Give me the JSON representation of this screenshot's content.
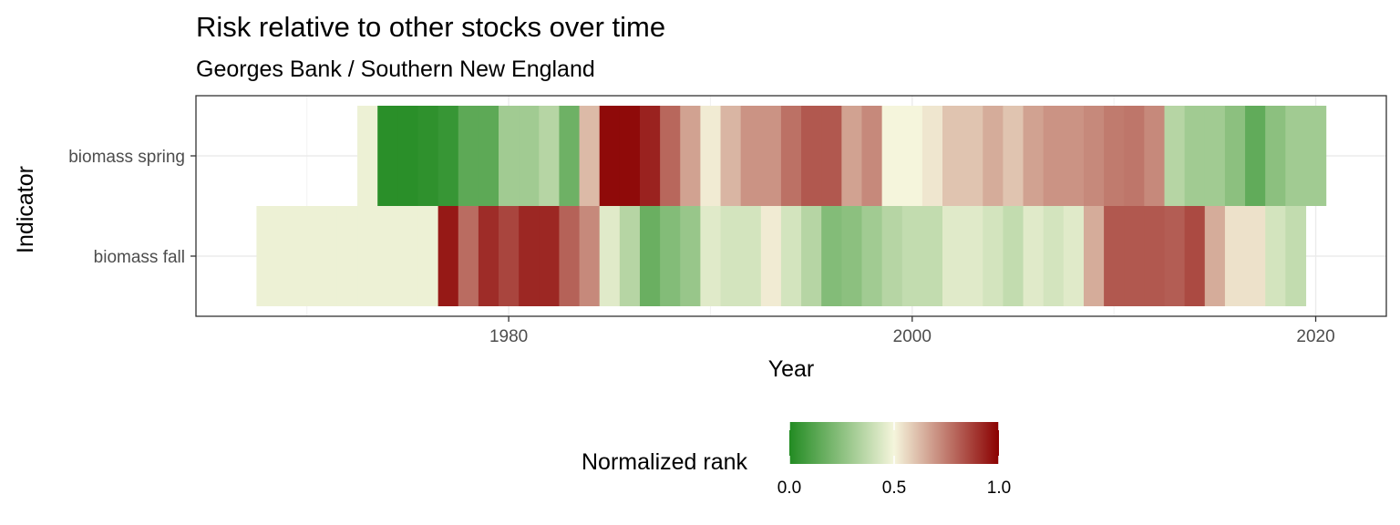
{
  "chart_data": {
    "type": "heatmap",
    "title": "Risk relative to other stocks over time",
    "subtitle": "Georges Bank / Southern New England",
    "xlabel": "Year",
    "ylabel": "Indicator",
    "xlim": [
      1964.5,
      2023.5
    ],
    "x_ticks": [
      1980,
      2000,
      2020
    ],
    "x_tick_labels": [
      "1980",
      "2000",
      "2020"
    ],
    "categories": [
      "biomass spring",
      "biomass fall"
    ],
    "grid": true,
    "legend": {
      "title": "Normalized rank",
      "position": "bottom",
      "range": [
        0,
        1
      ],
      "ticks": [
        0.0,
        0.5,
        1.0
      ],
      "tick_labels": [
        "0.0",
        "0.5",
        "1.0"
      ],
      "low_color": "#228B22",
      "mid_color": "#F5F5DC",
      "high_color": "#8B0000"
    },
    "series": [
      {
        "name": "biomass spring",
        "x": [
          1973,
          1974,
          1975,
          1976,
          1977,
          1978,
          1979,
          1980,
          1981,
          1982,
          1983,
          1984,
          1985,
          1986,
          1987,
          1988,
          1989,
          1990,
          1991,
          1992,
          1993,
          1994,
          1995,
          1996,
          1997,
          1998,
          1999,
          2000,
          2001,
          2002,
          2003,
          2004,
          2005,
          2006,
          2007,
          2008,
          2009,
          2010,
          2011,
          2012,
          2013,
          2014,
          2015,
          2016,
          2017,
          2018,
          2019,
          2020
        ],
        "values": [
          0.48,
          0.02,
          0.02,
          0.03,
          0.05,
          0.14,
          0.14,
          0.3,
          0.3,
          0.35,
          0.18,
          0.62,
          0.98,
          0.98,
          0.93,
          0.79,
          0.67,
          0.52,
          0.63,
          0.7,
          0.7,
          0.77,
          0.82,
          0.82,
          0.67,
          0.72,
          0.5,
          0.5,
          0.53,
          0.6,
          0.6,
          0.65,
          0.6,
          0.67,
          0.7,
          0.7,
          0.72,
          0.75,
          0.76,
          0.72,
          0.35,
          0.3,
          0.3,
          0.25,
          0.15,
          0.25,
          0.3,
          0.3
        ]
      },
      {
        "name": "biomass fall",
        "x": [
          1968,
          1969,
          1970,
          1971,
          1972,
          1973,
          1974,
          1975,
          1976,
          1977,
          1978,
          1979,
          1980,
          1981,
          1982,
          1983,
          1984,
          1985,
          1986,
          1987,
          1988,
          1989,
          1990,
          1991,
          1992,
          1993,
          1994,
          1995,
          1996,
          1997,
          1998,
          1999,
          2000,
          2001,
          2002,
          2003,
          2004,
          2005,
          2006,
          2007,
          2008,
          2009,
          2010,
          2011,
          2012,
          2013,
          2014,
          2015,
          2016,
          2017,
          2018,
          2019
        ],
        "values": [
          0.48,
          0.48,
          0.48,
          0.48,
          0.48,
          0.48,
          0.48,
          0.48,
          0.48,
          0.95,
          0.78,
          0.91,
          0.86,
          0.92,
          0.92,
          0.8,
          0.72,
          0.45,
          0.35,
          0.17,
          0.23,
          0.28,
          0.45,
          0.42,
          0.42,
          0.52,
          0.42,
          0.35,
          0.23,
          0.25,
          0.3,
          0.35,
          0.38,
          0.38,
          0.45,
          0.45,
          0.42,
          0.38,
          0.45,
          0.42,
          0.45,
          0.65,
          0.82,
          0.82,
          0.82,
          0.81,
          0.85,
          0.65,
          0.54,
          0.54,
          0.42,
          0.38
        ]
      }
    ]
  }
}
